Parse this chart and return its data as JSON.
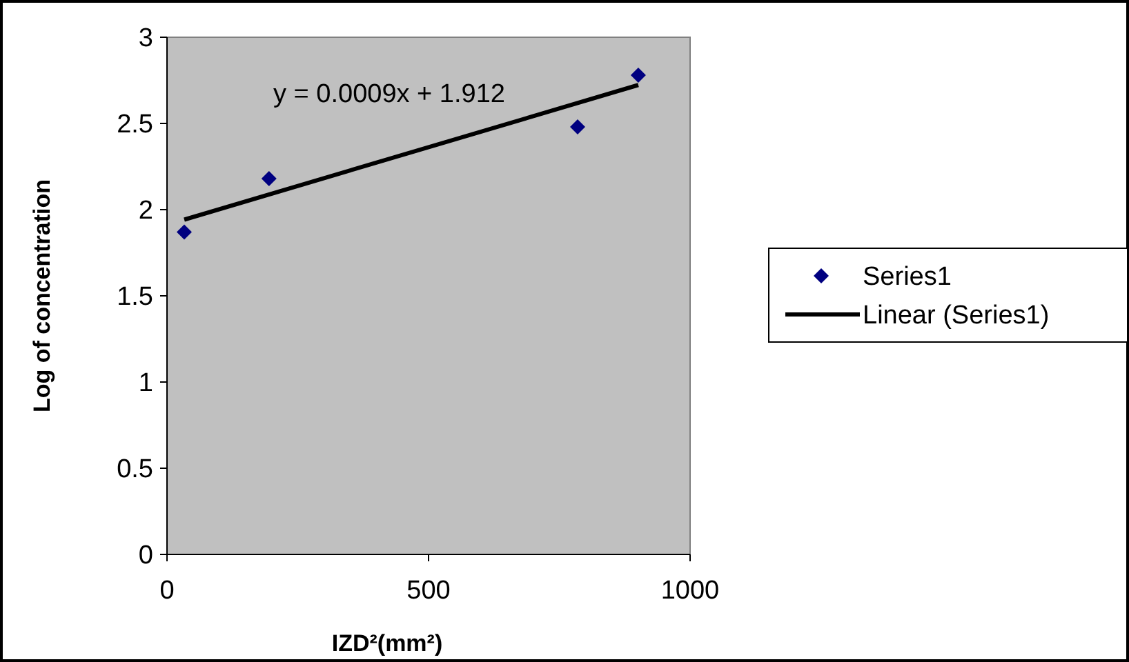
{
  "chart_data": {
    "type": "scatter",
    "xlabel": "IZD²(mm²)",
    "ylabel": "Log of concentration",
    "xlim": [
      0,
      1000
    ],
    "xticks": [
      0,
      500,
      1000
    ],
    "ylim": [
      0,
      3
    ],
    "yticks": [
      0,
      0.5,
      1,
      1.5,
      2,
      2.5,
      3
    ],
    "x": [
      33,
      195,
      785,
      901
    ],
    "series": [
      {
        "name": "Series1",
        "color": "#000080",
        "marker": "diamond",
        "values": [
          1.87,
          2.18,
          2.48,
          2.78
        ]
      },
      {
        "name": "Linear (Series1)",
        "type": "line",
        "color": "#000000",
        "marker": "none",
        "x": [
          33,
          901
        ],
        "values": [
          1.942,
          2.723
        ]
      }
    ],
    "annotations": [
      "y = 0.0009x + 1.912"
    ],
    "legend": "right",
    "grid": false
  }
}
